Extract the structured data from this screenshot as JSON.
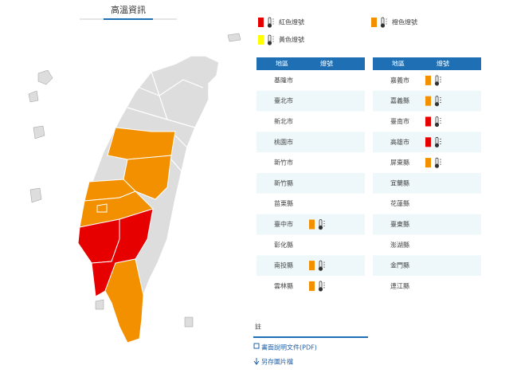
{
  "header": {
    "title": "高溫資訊"
  },
  "legend": [
    {
      "label": "紅色燈號",
      "color": "#e60000"
    },
    {
      "label": "橙色燈號",
      "color": "#f39000"
    },
    {
      "label": "黃色燈號",
      "color": "#ffff00"
    }
  ],
  "tables": [
    {
      "headers": [
        "地區",
        "燈號"
      ],
      "rows": [
        {
          "region": "基隆市",
          "signal": null
        },
        {
          "region": "臺北市",
          "signal": null
        },
        {
          "region": "新北市",
          "signal": null
        },
        {
          "region": "桃園市",
          "signal": null
        },
        {
          "region": "新竹市",
          "signal": null
        },
        {
          "region": "新竹縣",
          "signal": null
        },
        {
          "region": "苗栗縣",
          "signal": null
        },
        {
          "region": "臺中市",
          "signal": 1
        },
        {
          "region": "彰化縣",
          "signal": null
        },
        {
          "region": "南投縣",
          "signal": 1
        },
        {
          "region": "雲林縣",
          "signal": 1
        }
      ]
    },
    {
      "headers": [
        "地區",
        "燈號"
      ],
      "rows": [
        {
          "region": "嘉義市",
          "signal": 1
        },
        {
          "region": "嘉義縣",
          "signal": 1
        },
        {
          "region": "臺南市",
          "signal": 0
        },
        {
          "region": "高雄市",
          "signal": 0
        },
        {
          "region": "屏東縣",
          "signal": 1
        },
        {
          "region": "宜蘭縣",
          "signal": null
        },
        {
          "region": "花蓮縣",
          "signal": null
        },
        {
          "region": "臺東縣",
          "signal": null
        },
        {
          "region": "澎湖縣",
          "signal": null
        },
        {
          "region": "金門縣",
          "signal": null
        },
        {
          "region": "連江縣",
          "signal": null
        }
      ]
    }
  ],
  "note": {
    "label": "註",
    "links": [
      "書面說明文件(PDF)",
      "另存圖片檔"
    ]
  }
}
